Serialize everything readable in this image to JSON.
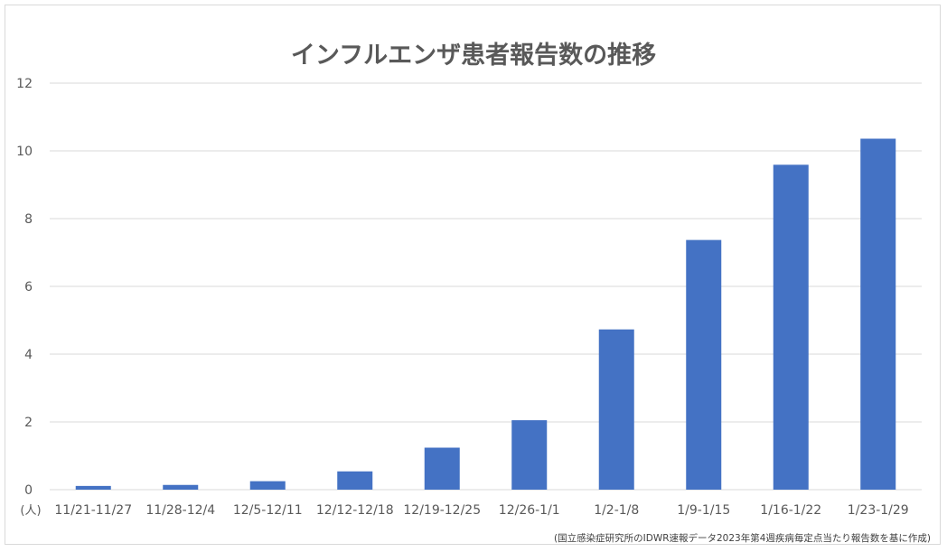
{
  "chart_data": {
    "type": "bar",
    "title": "インフルエンザ患者報告数の推移",
    "unit_label": "(人)",
    "note": "(国立感染症研究所のIDWR速報データ2023年第4週疾病毎定点当たり報告数を基に作成)",
    "categories": [
      "11/21-11/27",
      "11/28-12/4",
      "12/5-12/11",
      "12/12-12/18",
      "12/19-12/25",
      "12/26-1/1",
      "1/2-1/8",
      "1/9-1/15",
      "1/16-1/22",
      "1/23-1/29"
    ],
    "values": [
      0.11,
      0.14,
      0.25,
      0.54,
      1.24,
      2.05,
      4.73,
      7.37,
      9.59,
      10.36
    ],
    "ylim": [
      0,
      12
    ],
    "yticks": [
      0,
      2,
      4,
      6,
      8,
      10,
      12
    ],
    "grid": true,
    "legend": "none",
    "bar_color": "#4472c4",
    "grid_color": "#d9d9d9"
  }
}
